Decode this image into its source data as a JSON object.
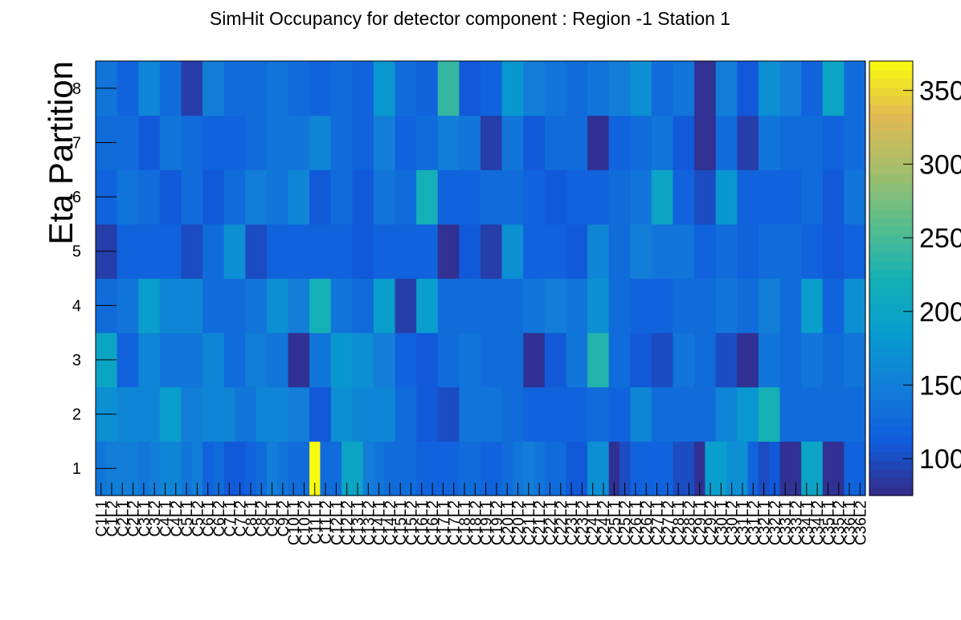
{
  "chart_data": {
    "type": "heatmap",
    "title": "SimHit Occupancy for detector component : Region -1 Station 1",
    "ylabel": "Eta Partition",
    "xlabel": "",
    "x_categories": [
      "C1L1",
      "C1L2",
      "C2L1",
      "C2L2",
      "C3L1",
      "C3L2",
      "C4L1",
      "C4L2",
      "C5L1",
      "C5L2",
      "C6L1",
      "C6L2",
      "C7L1",
      "C7L2",
      "C8L1",
      "C8L2",
      "C9L1",
      "C9L2",
      "C10L1",
      "C10L2",
      "C11L1",
      "C11L2",
      "C12L1",
      "C12L2",
      "C13L1",
      "C13L2",
      "C14L1",
      "C14L2",
      "C15L1",
      "C15L2",
      "C16L1",
      "C16L2",
      "C17L1",
      "C17L2",
      "C18L1",
      "C18L2",
      "C19L1",
      "C19L2",
      "C20L1",
      "C20L2",
      "C21L1",
      "C21L2",
      "C22L1",
      "C22L2",
      "C23L1",
      "C23L2",
      "C24L1",
      "C24L2",
      "C25L1",
      "C25L2",
      "C26L1",
      "C26L2",
      "C27L1",
      "C27L2",
      "C28L1",
      "C28L2",
      "C29L1",
      "C29L2",
      "C30L1",
      "C30L2",
      "C31L1",
      "C31L2",
      "C32L1",
      "C32L2",
      "C33L1",
      "C33L2",
      "C34L1",
      "C34L2",
      "C35L1",
      "C35L2",
      "C36L1",
      "C36L2"
    ],
    "y_categories": [
      "1",
      "2",
      "3",
      "4",
      "5",
      "6",
      "7",
      "8"
    ],
    "zlim": [
      75,
      370
    ],
    "colorbar_ticks": [
      "100",
      "150",
      "200",
      "250",
      "300",
      "350"
    ],
    "values": [
      [
        140,
        150,
        150,
        150,
        140,
        150,
        160,
        160,
        140,
        150,
        120,
        130,
        110,
        110,
        120,
        130,
        150,
        140,
        130,
        130,
        370,
        130,
        130,
        200,
        200,
        150,
        140,
        130,
        130,
        130,
        120,
        120,
        120,
        120,
        130,
        130,
        120,
        120,
        130,
        140,
        150,
        140,
        130,
        130,
        110,
        110,
        170,
        170,
        80,
        100,
        120,
        120,
        120,
        120,
        100,
        100,
        80,
        190,
        190,
        170,
        170,
        120,
        100,
        110,
        80,
        80,
        200,
        200,
        80,
        80,
        120,
        120
      ],
      [
        170,
        170,
        160,
        160,
        160,
        160,
        190,
        190,
        150,
        150,
        160,
        160,
        160,
        140,
        140,
        160,
        160,
        160,
        150,
        150,
        110,
        110,
        170,
        170,
        160,
        160,
        160,
        160,
        130,
        130,
        110,
        110,
        100,
        100,
        140,
        140,
        140,
        140,
        130,
        130,
        120,
        120,
        120,
        120,
        120,
        120,
        130,
        130,
        120,
        120,
        160,
        160,
        130,
        130,
        130,
        130,
        130,
        130,
        160,
        160,
        180,
        180,
        220,
        220,
        130,
        130,
        130,
        130,
        130,
        130,
        130,
        130
      ],
      [
        200,
        200,
        120,
        120,
        160,
        160,
        140,
        140,
        140,
        140,
        160,
        160,
        130,
        130,
        150,
        150,
        140,
        140,
        80,
        80,
        140,
        140,
        180,
        180,
        170,
        170,
        150,
        150,
        120,
        120,
        110,
        110,
        130,
        130,
        140,
        140,
        130,
        130,
        130,
        130,
        80,
        80,
        110,
        110,
        140,
        140,
        230,
        230,
        130,
        130,
        110,
        110,
        100,
        100,
        140,
        140,
        130,
        130,
        100,
        100,
        80,
        80,
        140,
        140,
        130,
        130,
        140,
        140,
        130,
        130,
        140,
        140
      ],
      [
        130,
        130,
        140,
        140,
        190,
        190,
        160,
        160,
        160,
        160,
        130,
        130,
        130,
        130,
        140,
        140,
        170,
        170,
        150,
        150,
        220,
        220,
        140,
        140,
        130,
        130,
        190,
        190,
        90,
        90,
        190,
        190,
        130,
        130,
        130,
        130,
        130,
        130,
        130,
        130,
        140,
        140,
        150,
        150,
        140,
        140,
        170,
        170,
        130,
        130,
        120,
        120,
        120,
        120,
        130,
        130,
        130,
        130,
        140,
        140,
        130,
        130,
        150,
        150,
        130,
        130,
        190,
        190,
        120,
        120,
        170,
        170
      ],
      [
        90,
        90,
        120,
        120,
        120,
        120,
        120,
        120,
        100,
        100,
        130,
        130,
        170,
        170,
        100,
        100,
        120,
        120,
        120,
        120,
        120,
        120,
        120,
        120,
        110,
        110,
        120,
        120,
        120,
        120,
        120,
        120,
        80,
        80,
        110,
        110,
        90,
        90,
        170,
        170,
        120,
        120,
        120,
        120,
        110,
        110,
        160,
        160,
        130,
        130,
        150,
        150,
        140,
        140,
        140,
        140,
        120,
        120,
        130,
        130,
        120,
        120,
        130,
        130,
        130,
        130,
        120,
        120,
        110,
        110,
        120,
        120
      ],
      [
        120,
        120,
        140,
        140,
        130,
        130,
        110,
        110,
        130,
        130,
        110,
        110,
        130,
        130,
        150,
        150,
        140,
        140,
        160,
        160,
        110,
        110,
        130,
        130,
        110,
        110,
        140,
        140,
        130,
        130,
        220,
        220,
        120,
        120,
        120,
        120,
        130,
        130,
        130,
        130,
        120,
        120,
        110,
        110,
        120,
        120,
        120,
        120,
        130,
        130,
        140,
        140,
        200,
        200,
        120,
        120,
        100,
        100,
        180,
        180,
        120,
        120,
        120,
        120,
        120,
        120,
        130,
        130,
        110,
        110,
        140,
        140
      ],
      [
        130,
        130,
        130,
        130,
        110,
        110,
        140,
        140,
        130,
        130,
        120,
        120,
        120,
        120,
        130,
        130,
        140,
        140,
        140,
        140,
        160,
        160,
        130,
        130,
        120,
        120,
        150,
        150,
        120,
        120,
        130,
        130,
        150,
        150,
        140,
        140,
        90,
        90,
        140,
        140,
        110,
        110,
        130,
        130,
        130,
        130,
        80,
        80,
        120,
        120,
        130,
        130,
        140,
        140,
        110,
        110,
        80,
        80,
        130,
        130,
        90,
        90,
        140,
        140,
        130,
        130,
        130,
        130,
        120,
        120,
        130,
        130
      ],
      [
        140,
        140,
        120,
        120,
        160,
        160,
        130,
        130,
        90,
        90,
        150,
        150,
        130,
        130,
        130,
        130,
        140,
        140,
        130,
        130,
        120,
        120,
        130,
        130,
        120,
        120,
        180,
        180,
        130,
        130,
        120,
        120,
        240,
        240,
        110,
        110,
        120,
        120,
        180,
        180,
        150,
        150,
        140,
        140,
        130,
        130,
        140,
        140,
        150,
        150,
        170,
        170,
        130,
        130,
        140,
        140,
        80,
        80,
        150,
        150,
        110,
        110,
        170,
        170,
        150,
        150,
        120,
        120,
        200,
        200,
        130,
        130
      ]
    ]
  }
}
